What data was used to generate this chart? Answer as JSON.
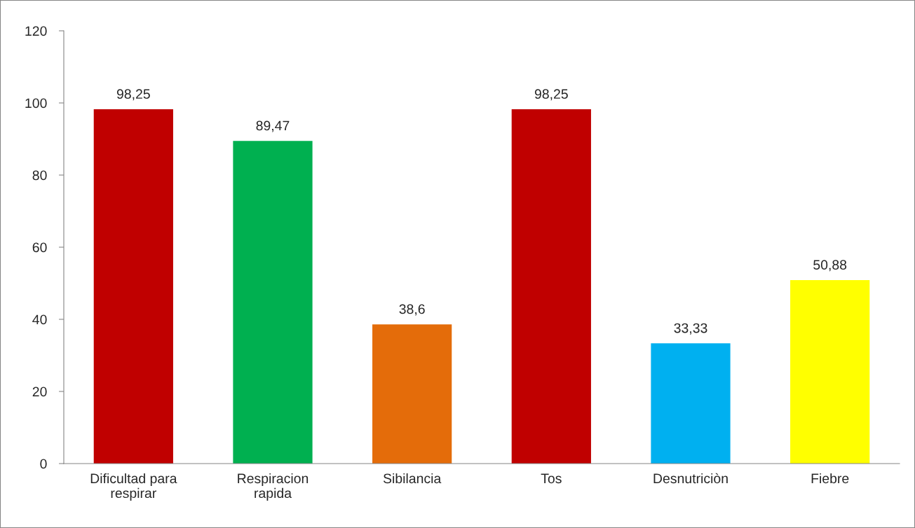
{
  "chart_data": {
    "type": "bar",
    "categories": [
      "Dificultad para\nrespirar",
      "Respiracion\nrapida",
      "Sibilancia",
      "Tos",
      "Desnutriciòn",
      "Fiebre"
    ],
    "values": [
      98.25,
      89.47,
      38.6,
      98.25,
      33.33,
      50.88
    ],
    "colors": [
      "#c00000",
      "#00b050",
      "#e46c0a",
      "#c00000",
      "#00b0f0",
      "#ffff00"
    ],
    "value_labels": [
      "98,25",
      "89,47",
      "38,6",
      "98,25",
      "33,33",
      "50,88"
    ],
    "ylim": [
      0,
      120
    ],
    "yticks": [
      0,
      20,
      40,
      60,
      80,
      100,
      120
    ],
    "grid": false,
    "legend": false
  }
}
